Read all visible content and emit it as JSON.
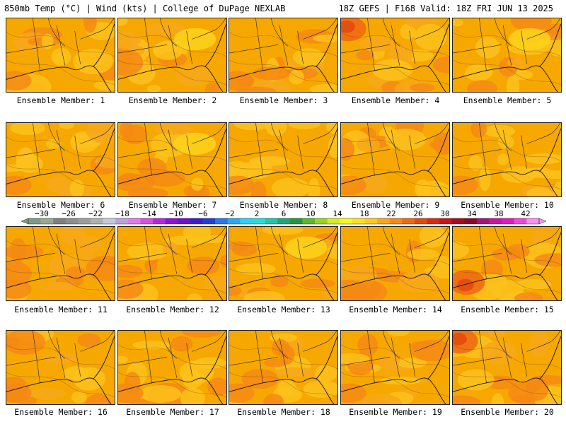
{
  "header": {
    "left": "850mb Temp (°C) | Wind (kts) | College of DuPage NEXLAB",
    "right": "18Z GEFS | F168 Valid: 18Z FRI JUN 13 2025"
  },
  "members": [
    {
      "label": "Ensemble Member: 1",
      "warm": "mid"
    },
    {
      "label": "Ensemble Member: 2",
      "warm": "low"
    },
    {
      "label": "Ensemble Member: 3",
      "warm": "mid"
    },
    {
      "label": "Ensemble Member: 4",
      "warm": "high"
    },
    {
      "label": "Ensemble Member: 5",
      "warm": "low"
    },
    {
      "label": "Ensemble Member: 6",
      "warm": "mid"
    },
    {
      "label": "Ensemble Member: 7",
      "warm": "low"
    },
    {
      "label": "Ensemble Member: 8",
      "warm": "mid"
    },
    {
      "label": "Ensemble Member: 9",
      "warm": "mid"
    },
    {
      "label": "Ensemble Member: 10",
      "warm": "mid"
    },
    {
      "label": "Ensemble Member: 11",
      "warm": "mid"
    },
    {
      "label": "Ensemble Member: 12",
      "warm": "mid"
    },
    {
      "label": "Ensemble Member: 13",
      "warm": "low"
    },
    {
      "label": "Ensemble Member: 14",
      "warm": "mid"
    },
    {
      "label": "Ensemble Member: 15",
      "warm": "high"
    },
    {
      "label": "Ensemble Member: 16",
      "warm": "mid"
    },
    {
      "label": "Ensemble Member: 17",
      "warm": "mid"
    },
    {
      "label": "Ensemble Member: 18",
      "warm": "mid"
    },
    {
      "label": "Ensemble Member: 19",
      "warm": "mid"
    },
    {
      "label": "Ensemble Member: 20",
      "warm": "high"
    }
  ],
  "colorbar": {
    "units": "°C",
    "min": -32,
    "max": 44,
    "labels": [
      "−30",
      "−26",
      "−22",
      "−18",
      "−14",
      "−10",
      "−6",
      "−2",
      "2",
      "6",
      "10",
      "14",
      "18",
      "22",
      "26",
      "30",
      "34",
      "38",
      "42"
    ],
    "label_values": [
      -30,
      -26,
      -22,
      -18,
      -14,
      -10,
      -6,
      -2,
      2,
      6,
      10,
      14,
      18,
      22,
      26,
      30,
      34,
      38,
      42
    ],
    "colors": [
      "#7d9a87",
      "#9aa88f",
      "#7f7f7f",
      "#8e8e8e",
      "#9c9c9c",
      "#b0b0b0",
      "#c6c6dc",
      "#b9a3d9",
      "#e07ae6",
      "#d750e2",
      "#b22ae0",
      "#8a14d8",
      "#6a14cc",
      "#3f1ec8",
      "#2140d6",
      "#2a78e6",
      "#28aaf0",
      "#2ad2f4",
      "#22e0d8",
      "#20c8a6",
      "#1ea878",
      "#229a3c",
      "#5cba28",
      "#9ad41c",
      "#d8ec1e",
      "#f8f81a",
      "#fce21e",
      "#fcca1c",
      "#f8a81a",
      "#f48a14",
      "#ee6a12",
      "#e44a10",
      "#dc2a10",
      "#c8141a",
      "#a80a1e",
      "#880a2a",
      "#a01878",
      "#c8189c",
      "#e01cc0",
      "#f048dc",
      "#f890ee"
    ]
  }
}
